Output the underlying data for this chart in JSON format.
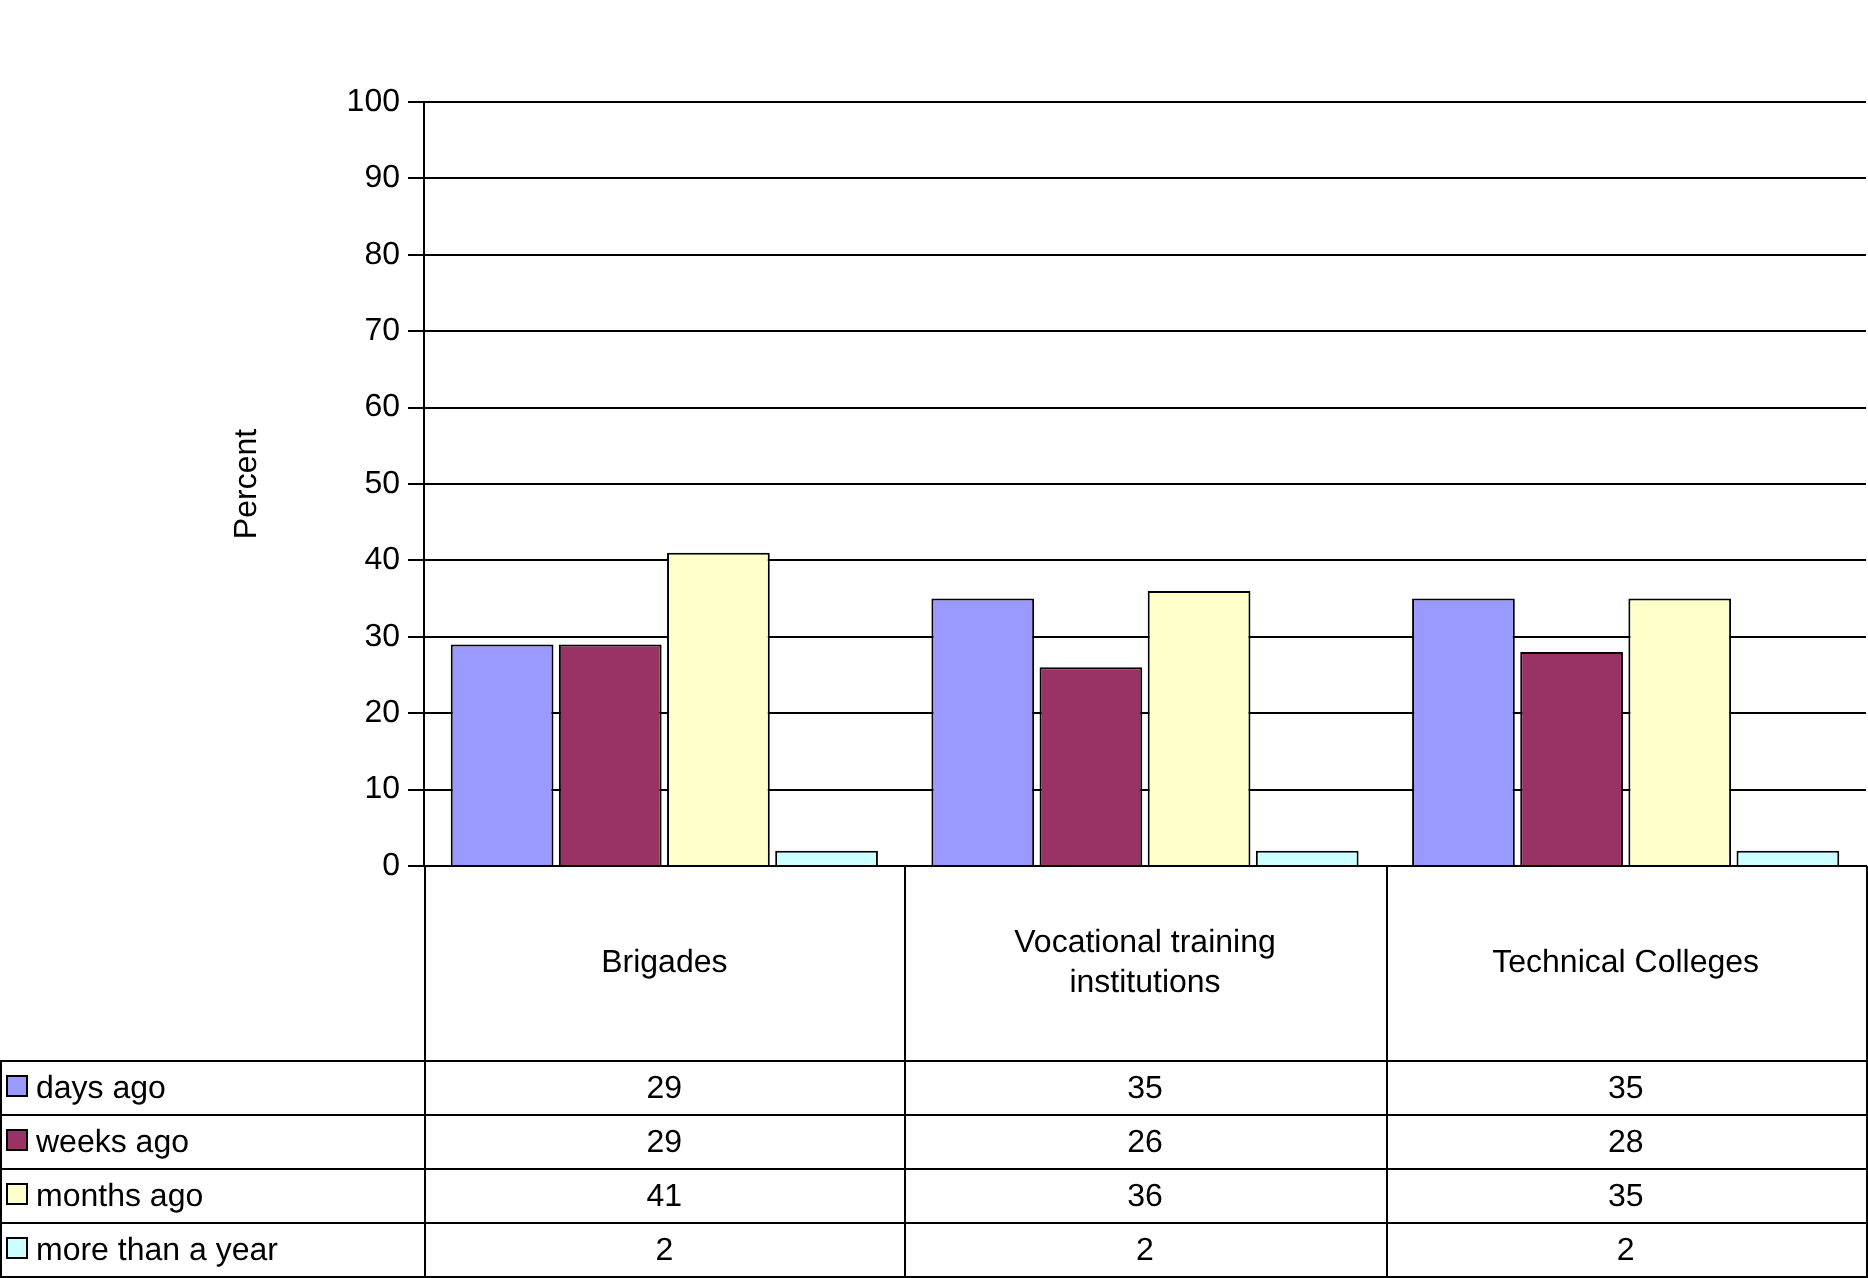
{
  "chart_data": {
    "type": "bar",
    "ylabel": "Percent",
    "categories": [
      "Brigades",
      "Vocational training institutions",
      "Technical Colleges"
    ],
    "series": [
      {
        "name": "days ago",
        "color": "#9999ff",
        "values": [
          29,
          35,
          35
        ]
      },
      {
        "name": "weeks ago",
        "color": "#993366",
        "values": [
          29,
          26,
          28
        ]
      },
      {
        "name": "months ago",
        "color": "#ffffcc",
        "values": [
          41,
          36,
          35
        ]
      },
      {
        "name": "more than a year",
        "color": "#ccffff",
        "values": [
          2,
          2,
          2
        ]
      }
    ],
    "ylim": [
      0,
      100
    ],
    "yticks": [
      0,
      10,
      20,
      30,
      40,
      50,
      60,
      70,
      80,
      90,
      100
    ],
    "grid": "y",
    "legend": "bottom",
    "data_labels": true
  }
}
